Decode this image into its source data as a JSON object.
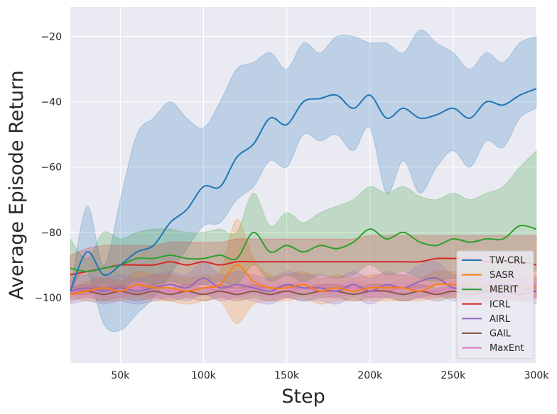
{
  "chart_data": {
    "type": "line",
    "title": "",
    "xlabel": "Step",
    "ylabel": "Average Episode Return",
    "xlim": [
      20000,
      300000
    ],
    "ylim": [
      -120,
      -11
    ],
    "grid": true,
    "legend_position": "bottom-right",
    "x_ticks": [
      50000,
      100000,
      150000,
      200000,
      250000,
      300000
    ],
    "x_tick_labels": [
      "50k",
      "100k",
      "150k",
      "200k",
      "250k",
      "300k"
    ],
    "y_ticks": [
      -100,
      -80,
      -60,
      -40,
      -20
    ],
    "y_tick_labels": [
      "−100",
      "−80",
      "−60",
      "−40",
      "−20"
    ],
    "x": [
      20000,
      30000,
      40000,
      50000,
      60000,
      70000,
      80000,
      90000,
      100000,
      110000,
      120000,
      130000,
      140000,
      150000,
      160000,
      170000,
      180000,
      190000,
      200000,
      210000,
      220000,
      230000,
      240000,
      250000,
      260000,
      270000,
      280000,
      290000,
      300000
    ],
    "series": [
      {
        "name": "TW-CRL",
        "color": "#1f77b4",
        "values": [
          -98,
          -86,
          -93,
          -90,
          -86,
          -84,
          -77,
          -73,
          -66,
          -66,
          -57,
          -53,
          -45,
          -47,
          -40,
          -39,
          -38,
          -42,
          -38,
          -45,
          -42,
          -45,
          -44,
          -42,
          -45,
          -40,
          -41,
          -38,
          -36
        ],
        "lower": [
          -98,
          -92,
          -108,
          -110,
          -105,
          -100,
          -93,
          -85,
          -78,
          -77,
          -70,
          -66,
          -58,
          -60,
          -50,
          -52,
          -50,
          -55,
          -48,
          -68,
          -58,
          -68,
          -60,
          -55,
          -60,
          -52,
          -54,
          -45,
          -42
        ],
        "upper": [
          -98,
          -72,
          -90,
          -70,
          -50,
          -45,
          -40,
          -45,
          -48,
          -40,
          -30,
          -28,
          -25,
          -30,
          -22,
          -25,
          -20,
          -20,
          -22,
          -22,
          -25,
          -18,
          -22,
          -25,
          -30,
          -25,
          -28,
          -22,
          -20
        ]
      },
      {
        "name": "SASR",
        "color": "#ff7f0e",
        "values": [
          -99,
          -98,
          -97,
          -98,
          -96,
          -97,
          -97,
          -98,
          -97,
          -96,
          -90,
          -95,
          -97,
          -97,
          -96,
          -98,
          -97,
          -98,
          -97,
          -97,
          -97,
          -98,
          -96,
          -96,
          -96,
          -97,
          -97,
          -97,
          -97
        ],
        "lower": [
          -100,
          -101,
          -101,
          -101,
          -100,
          -101,
          -101,
          -102,
          -101,
          -101,
          -108,
          -102,
          -101,
          -101,
          -100,
          -102,
          -101,
          -101,
          -101,
          -101,
          -101,
          -101,
          -100,
          -100,
          -100,
          -101,
          -101,
          -101,
          -100
        ],
        "upper": [
          -97,
          -95,
          -94,
          -95,
          -92,
          -93,
          -93,
          -94,
          -93,
          -92,
          -76,
          -88,
          -93,
          -93,
          -92,
          -94,
          -93,
          -94,
          -93,
          -93,
          -93,
          -94,
          -92,
          -92,
          -92,
          -93,
          -93,
          -93,
          -93
        ]
      },
      {
        "name": "MERIT",
        "color": "#2ca02c",
        "values": [
          -91,
          -92,
          -91,
          -90,
          -88,
          -88,
          -87,
          -88,
          -88,
          -87,
          -88,
          -80,
          -86,
          -84,
          -86,
          -84,
          -85,
          -83,
          -79,
          -82,
          -80,
          -83,
          -84,
          -82,
          -83,
          -82,
          -82,
          -78,
          -79
        ],
        "lower": [
          -97,
          -98,
          -98,
          -97,
          -95,
          -96,
          -95,
          -96,
          -96,
          -95,
          -96,
          -90,
          -95,
          -93,
          -95,
          -93,
          -94,
          -93,
          -90,
          -93,
          -92,
          -94,
          -95,
          -94,
          -95,
          -94,
          -94,
          -91,
          -92
        ],
        "upper": [
          -82,
          -88,
          -80,
          -82,
          -80,
          -79,
          -79,
          -80,
          -80,
          -79,
          -80,
          -68,
          -78,
          -74,
          -77,
          -74,
          -72,
          -70,
          -66,
          -68,
          -66,
          -69,
          -70,
          -68,
          -70,
          -68,
          -66,
          -60,
          -55
        ]
      },
      {
        "name": "ICRL",
        "color": "#d62728",
        "values": [
          -93,
          -92,
          -91,
          -90,
          -90,
          -90,
          -89,
          -90,
          -89,
          -90,
          -89,
          -89,
          -89,
          -89,
          -89,
          -89,
          -89,
          -89,
          -89,
          -89,
          -89,
          -89,
          -88,
          -88,
          -88,
          -89,
          -89,
          -89,
          -90
        ],
        "lower": [
          -99,
          -99,
          -98,
          -97,
          -97,
          -97,
          -96,
          -97,
          -96,
          -97,
          -97,
          -97,
          -97,
          -97,
          -97,
          -97,
          -97,
          -97,
          -97,
          -97,
          -97,
          -97,
          -96,
          -96,
          -97,
          -97,
          -97,
          -97,
          -97
        ],
        "upper": [
          -87,
          -85,
          -84,
          -84,
          -84,
          -84,
          -83,
          -83,
          -83,
          -83,
          -82,
          -82,
          -82,
          -82,
          -82,
          -82,
          -82,
          -82,
          -81,
          -81,
          -81,
          -81,
          -81,
          -81,
          -81,
          -81,
          -81,
          -81,
          -81
        ]
      },
      {
        "name": "AIRL",
        "color": "#9467bd",
        "values": [
          -98,
          -97,
          -98,
          -97,
          -98,
          -97,
          -96,
          -97,
          -94,
          -97,
          -96,
          -97,
          -98,
          -96,
          -97,
          -97,
          -98,
          -96,
          -98,
          -96,
          -97,
          -95,
          -94,
          -97,
          -97,
          -98,
          -96,
          -97,
          -98
        ],
        "lower": [
          -102,
          -101,
          -102,
          -101,
          -102,
          -101,
          -100,
          -101,
          -99,
          -101,
          -100,
          -101,
          -102,
          -100,
          -101,
          -101,
          -102,
          -100,
          -102,
          -100,
          -101,
          -100,
          -99,
          -101,
          -101,
          -102,
          -100,
          -101,
          -102
        ],
        "upper": [
          -94,
          -93,
          -94,
          -93,
          -94,
          -93,
          -92,
          -93,
          -89,
          -93,
          -92,
          -93,
          -94,
          -92,
          -93,
          -93,
          -94,
          -92,
          -94,
          -92,
          -93,
          -90,
          -89,
          -93,
          -93,
          -94,
          -92,
          -93,
          -94
        ]
      },
      {
        "name": "GAIL",
        "color": "#8c564b",
        "values": [
          -99,
          -98,
          -99,
          -98,
          -99,
          -98,
          -99,
          -98,
          -99,
          -98,
          -99,
          -98,
          -99,
          -98,
          -99,
          -98,
          -98,
          -99,
          -98,
          -98,
          -99,
          -98,
          -99,
          -98,
          -99,
          -98,
          -98,
          -99,
          -98
        ],
        "lower": [
          -101,
          -100,
          -101,
          -100,
          -101,
          -100,
          -101,
          -100,
          -101,
          -100,
          -101,
          -100,
          -101,
          -100,
          -101,
          -100,
          -100,
          -101,
          -100,
          -100,
          -101,
          -100,
          -101,
          -100,
          -101,
          -100,
          -100,
          -101,
          -100
        ],
        "upper": [
          -97,
          -96,
          -97,
          -96,
          -97,
          -96,
          -97,
          -96,
          -97,
          -96,
          -97,
          -96,
          -97,
          -96,
          -97,
          -96,
          -96,
          -97,
          -96,
          -96,
          -97,
          -96,
          -97,
          -96,
          -97,
          -96,
          -96,
          -97,
          -96
        ]
      },
      {
        "name": "MaxEnt",
        "color": "#e377c2",
        "values": [
          -98,
          -98,
          -98,
          -98,
          -97,
          -98,
          -98,
          -98,
          -97,
          -98,
          -98,
          -97,
          -98,
          -98,
          -97,
          -98,
          -98,
          -97,
          -98,
          -98,
          -97,
          -98,
          -98,
          -97,
          -98,
          -97,
          -98,
          -98,
          -98
        ],
        "lower": [
          -100,
          -100,
          -100,
          -100,
          -99,
          -100,
          -100,
          -100,
          -99,
          -100,
          -100,
          -99,
          -100,
          -100,
          -99,
          -100,
          -100,
          -99,
          -100,
          -100,
          -99,
          -100,
          -100,
          -99,
          -100,
          -99,
          -100,
          -100,
          -100
        ],
        "upper": [
          -96,
          -96,
          -96,
          -96,
          -95,
          -96,
          -96,
          -96,
          -95,
          -96,
          -96,
          -95,
          -96,
          -96,
          -95,
          -96,
          -96,
          -95,
          -96,
          -96,
          -95,
          -96,
          -96,
          -95,
          -96,
          -95,
          -96,
          -96,
          -96
        ]
      }
    ]
  }
}
